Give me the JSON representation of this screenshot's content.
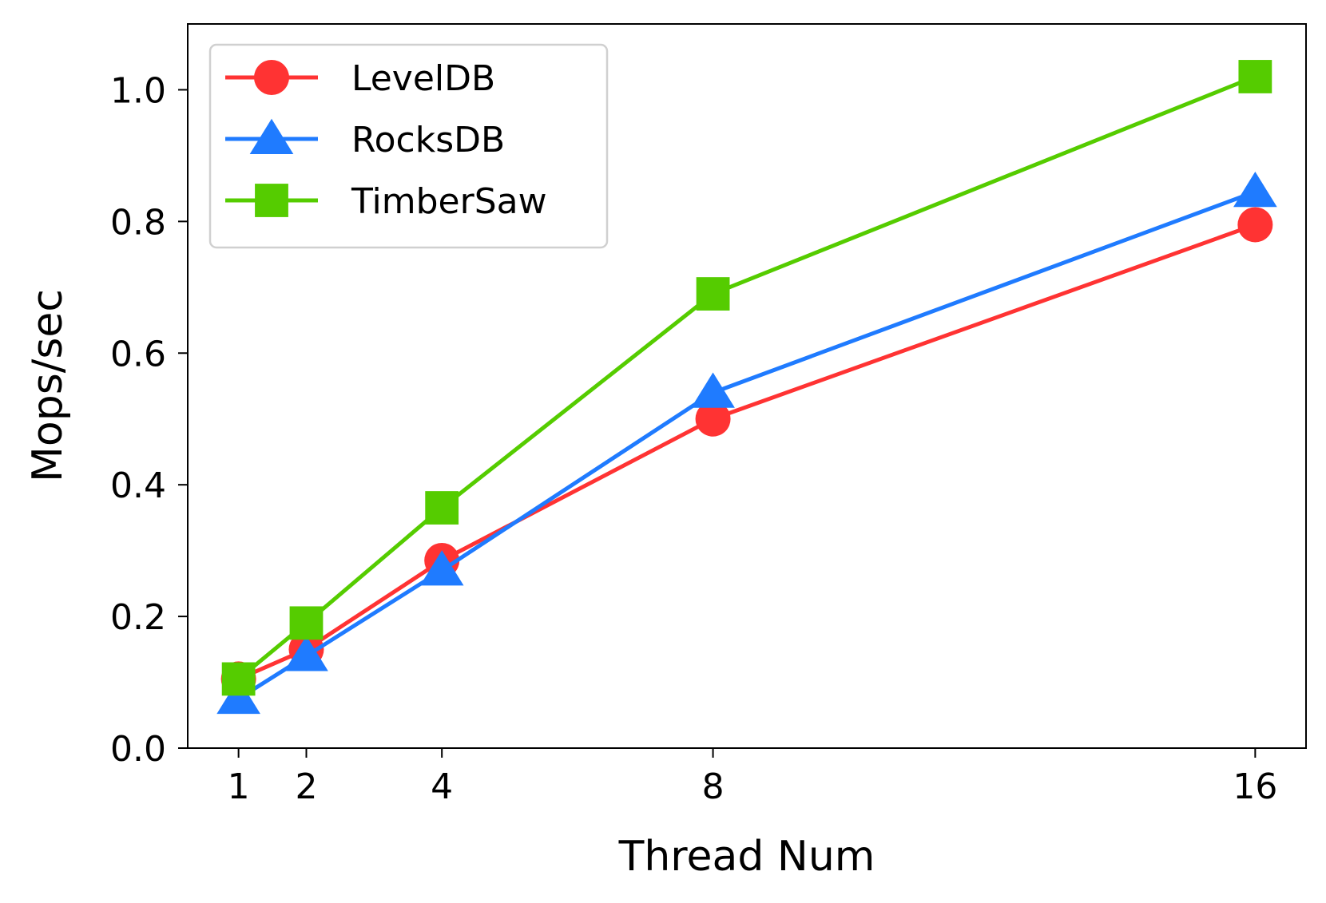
{
  "chart_data": {
    "type": "line",
    "xlabel": "Thread Num",
    "ylabel": "Mops/sec",
    "x": [
      1,
      2,
      4,
      8,
      16
    ],
    "xticks": [
      "1",
      "2",
      "4",
      "8",
      "16"
    ],
    "xlim": [
      0.25,
      16.75
    ],
    "ylim": [
      0,
      1.1
    ],
    "yticks": [
      "0.0",
      "0.2",
      "0.4",
      "0.6",
      "0.8",
      "1.0"
    ],
    "ytick_values": [
      0,
      0.2,
      0.4,
      0.6,
      0.8,
      1.0
    ],
    "grid": false,
    "legend_position": "top-left",
    "series": [
      {
        "name": "LevelDB",
        "color": "#ff3333",
        "marker": "circle",
        "values": [
          0.105,
          0.15,
          0.285,
          0.5,
          0.795
        ]
      },
      {
        "name": "RocksDB",
        "color": "#1f7bff",
        "marker": "triangle",
        "values": [
          0.075,
          0.14,
          0.27,
          0.54,
          0.845
        ]
      },
      {
        "name": "TimberSaw",
        "color": "#55cc00",
        "marker": "square",
        "values": [
          0.105,
          0.19,
          0.365,
          0.69,
          1.02
        ]
      }
    ]
  }
}
